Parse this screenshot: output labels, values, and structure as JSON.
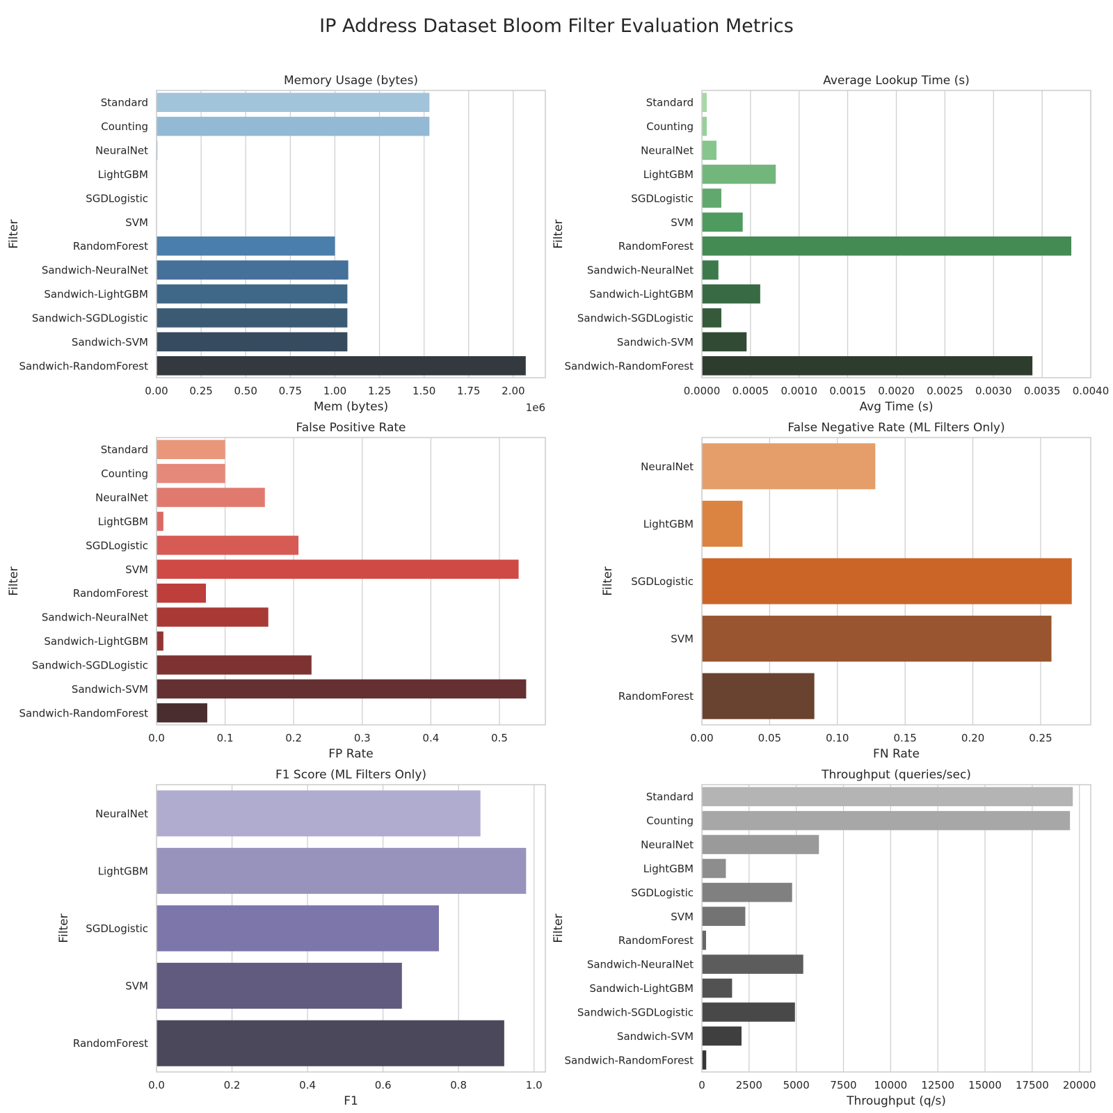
{
  "figure": {
    "title": "IP Address Dataset Bloom Filter Evaluation Metrics"
  },
  "chart_data": [
    {
      "type": "bar",
      "orientation": "horizontal",
      "title": "Memory Usage (bytes)",
      "xlabel": "Mem (bytes)",
      "ylabel": "Filter",
      "x_offset_label": "1e6",
      "xlim": [
        0,
        2.18
      ],
      "xticks": [
        0,
        0.25,
        0.5,
        0.75,
        1.0,
        1.25,
        1.5,
        1.75,
        2.0
      ],
      "xtick_labels": [
        "0.00",
        "0.25",
        "0.50",
        "0.75",
        "1.00",
        "1.25",
        "1.50",
        "1.75",
        "2.00"
      ],
      "categories": [
        "Standard",
        "Counting",
        "NeuralNet",
        "LightGBM",
        "SGDLogistic",
        "SVM",
        "RandomForest",
        "Sandwich-NeuralNet",
        "Sandwich-LightGBM",
        "Sandwich-SGDLogistic",
        "Sandwich-SVM",
        "Sandwich-RandomForest"
      ],
      "values": [
        1.53,
        1.53,
        0.005,
        0.0005,
        0.0005,
        0.0005,
        1.0,
        1.075,
        1.07,
        1.07,
        1.07,
        2.07
      ],
      "colors": [
        "#a1c4da",
        "#93b9d5",
        "#86aed0",
        "#78a3c9",
        "#6b97c0",
        "#5d8bb7",
        "#4a7eab",
        "#44709a",
        "#3f6888",
        "#3b5b75",
        "#374b5e",
        "#33393f"
      ],
      "grid": true
    },
    {
      "type": "bar",
      "orientation": "horizontal",
      "title": "Average Lookup Time (s)",
      "xlabel": "Avg Time (s)",
      "ylabel": "Filter",
      "xlim": [
        0,
        0.004
      ],
      "xticks": [
        0,
        0.0005,
        0.001,
        0.0015,
        0.002,
        0.0025,
        0.003,
        0.0035,
        0.004
      ],
      "xtick_labels": [
        "0.0000",
        "0.0005",
        "0.0010",
        "0.0015",
        "0.0020",
        "0.0025",
        "0.0030",
        "0.0035",
        "0.0040"
      ],
      "categories": [
        "Standard",
        "Counting",
        "NeuralNet",
        "LightGBM",
        "SGDLogistic",
        "SVM",
        "RandomForest",
        "Sandwich-NeuralNet",
        "Sandwich-LightGBM",
        "Sandwich-SGDLogistic",
        "Sandwich-SVM",
        "Sandwich-RandomForest"
      ],
      "values": [
        5e-05,
        5e-05,
        0.00015,
        0.00076,
        0.0002,
        0.00042,
        0.0038,
        0.00017,
        0.0006,
        0.0002,
        0.00046,
        0.0034
      ],
      "colors": [
        "#a6d8a6",
        "#97d099",
        "#86c58b",
        "#73b67c",
        "#60a86d",
        "#4f9a5f",
        "#438a53",
        "#3d7a4b",
        "#386a43",
        "#345a3a",
        "#304a33",
        "#2d3c2d"
      ],
      "grid": true
    },
    {
      "type": "bar",
      "orientation": "horizontal",
      "title": "False Positive Rate",
      "xlabel": "FP Rate",
      "ylabel": "Filter",
      "xlim": [
        0,
        0.567
      ],
      "xticks": [
        0,
        0.1,
        0.2,
        0.3,
        0.4,
        0.5
      ],
      "xtick_labels": [
        "0.0",
        "0.1",
        "0.2",
        "0.3",
        "0.4",
        "0.5"
      ],
      "categories": [
        "Standard",
        "Counting",
        "NeuralNet",
        "LightGBM",
        "SGDLogistic",
        "SVM",
        "RandomForest",
        "Sandwich-NeuralNet",
        "Sandwich-LightGBM",
        "Sandwich-SGDLogistic",
        "Sandwich-SVM",
        "Sandwich-RandomForest"
      ],
      "values": [
        0.1,
        0.1,
        0.158,
        0.01,
        0.207,
        0.528,
        0.072,
        0.163,
        0.01,
        0.226,
        0.539,
        0.074
      ],
      "colors": [
        "#e9967a",
        "#e5897a",
        "#e07a6e",
        "#dc6a62",
        "#d75b55",
        "#cf4a44",
        "#bd3e3a",
        "#a83a36",
        "#923532",
        "#7c3332",
        "#653032",
        "#4a2e2f"
      ],
      "grid": true
    },
    {
      "type": "bar",
      "orientation": "horizontal",
      "title": "False Negative Rate (ML Filters Only)",
      "xlabel": "FN Rate",
      "ylabel": "Filter",
      "xlim": [
        0,
        0.287
      ],
      "xticks": [
        0,
        0.05,
        0.1,
        0.15,
        0.2,
        0.25
      ],
      "xtick_labels": [
        "0.00",
        "0.05",
        "0.10",
        "0.15",
        "0.20",
        "0.25"
      ],
      "categories": [
        "NeuralNet",
        "LightGBM",
        "SGDLogistic",
        "SVM",
        "RandomForest"
      ],
      "values": [
        0.128,
        0.03,
        0.273,
        0.258,
        0.083
      ],
      "colors": [
        "#e59e6a",
        "#db8442",
        "#cb6527",
        "#99552f",
        "#694330"
      ],
      "grid": true
    },
    {
      "type": "bar",
      "orientation": "horizontal",
      "title": "F1 Score (ML Filters Only)",
      "xlabel": "F1",
      "ylabel": "Filter",
      "xlim": [
        0,
        1.03
      ],
      "xticks": [
        0,
        0.2,
        0.4,
        0.6,
        0.8,
        1.0
      ],
      "xtick_labels": [
        "0.0",
        "0.2",
        "0.4",
        "0.6",
        "0.8",
        "1.0"
      ],
      "categories": [
        "NeuralNet",
        "LightGBM",
        "SGDLogistic",
        "SVM",
        "RandomForest"
      ],
      "values": [
        0.858,
        0.979,
        0.748,
        0.65,
        0.921
      ],
      "colors": [
        "#afaccf",
        "#9893bc",
        "#7d76aa",
        "#625b80",
        "#4a485a"
      ],
      "grid": true
    },
    {
      "type": "bar",
      "orientation": "horizontal",
      "title": "Throughput (queries/sec)",
      "xlabel": "Throughput (q/s)",
      "ylabel": "Filter",
      "xlim": [
        0,
        20600
      ],
      "xticks": [
        0,
        2500,
        5000,
        7500,
        10000,
        12500,
        15000,
        17500,
        20000
      ],
      "xtick_labels": [
        "0",
        "2500",
        "5000",
        "7500",
        "10000",
        "12500",
        "15000",
        "17500",
        "20000"
      ],
      "categories": [
        "Standard",
        "Counting",
        "NeuralNet",
        "LightGBM",
        "SGDLogistic",
        "SVM",
        "RandomForest",
        "Sandwich-NeuralNet",
        "Sandwich-LightGBM",
        "Sandwich-SGDLogistic",
        "Sandwich-SVM",
        "Sandwich-RandomForest"
      ],
      "values": [
        19650,
        19500,
        6200,
        1270,
        4780,
        2300,
        220,
        5370,
        1600,
        4930,
        2100,
        230
      ],
      "colors": [
        "#b4b4b4",
        "#a7a7a7",
        "#9a9a9a",
        "#8d8d8d",
        "#808080",
        "#737373",
        "#676767",
        "#5c5c5c",
        "#525252",
        "#484848",
        "#3f3f3f",
        "#363636"
      ],
      "grid": true
    }
  ]
}
